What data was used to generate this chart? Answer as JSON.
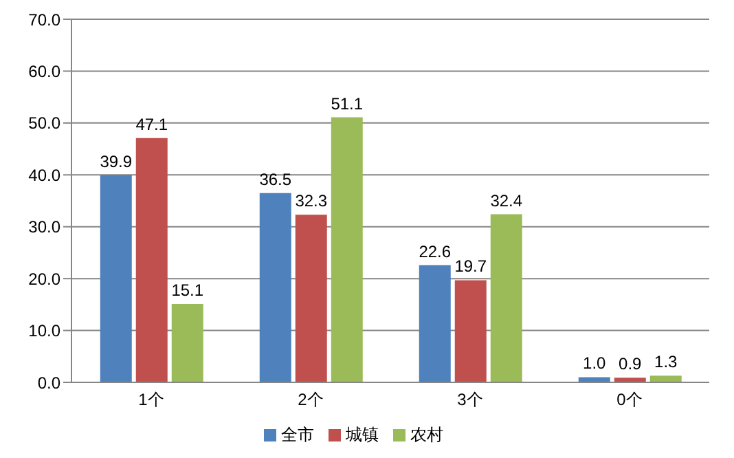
{
  "chart_data": {
    "type": "bar",
    "categories": [
      "1个",
      "2个",
      "3个",
      "0个"
    ],
    "series": [
      {
        "name": "全市",
        "color": "#4f81bd",
        "values": [
          39.9,
          36.5,
          22.6,
          1.0
        ],
        "value_labels": [
          "39.9",
          "36.5",
          "22.6",
          "1.0"
        ]
      },
      {
        "name": "城镇",
        "color": "#c0504d",
        "values": [
          47.1,
          32.3,
          19.7,
          0.9
        ],
        "value_labels": [
          "47.1",
          "32.3",
          "19.7",
          "0.9"
        ]
      },
      {
        "name": "农村",
        "color": "#9bbb59",
        "values": [
          15.1,
          51.1,
          32.4,
          1.3
        ],
        "value_labels": [
          "15.1",
          "51.1",
          "32.4",
          "1.3"
        ]
      }
    ],
    "ylim": [
      0,
      70
    ],
    "yticks": [
      {
        "value": 0,
        "label": "0.0"
      },
      {
        "value": 10,
        "label": "10.0"
      },
      {
        "value": 20,
        "label": "20.0"
      },
      {
        "value": 30,
        "label": "30.0"
      },
      {
        "value": 40,
        "label": "40.0"
      },
      {
        "value": 50,
        "label": "50.0"
      },
      {
        "value": 60,
        "label": "60.0"
      },
      {
        "value": 70,
        "label": "70.0"
      }
    ],
    "grid": "y",
    "legend": "bottom"
  }
}
